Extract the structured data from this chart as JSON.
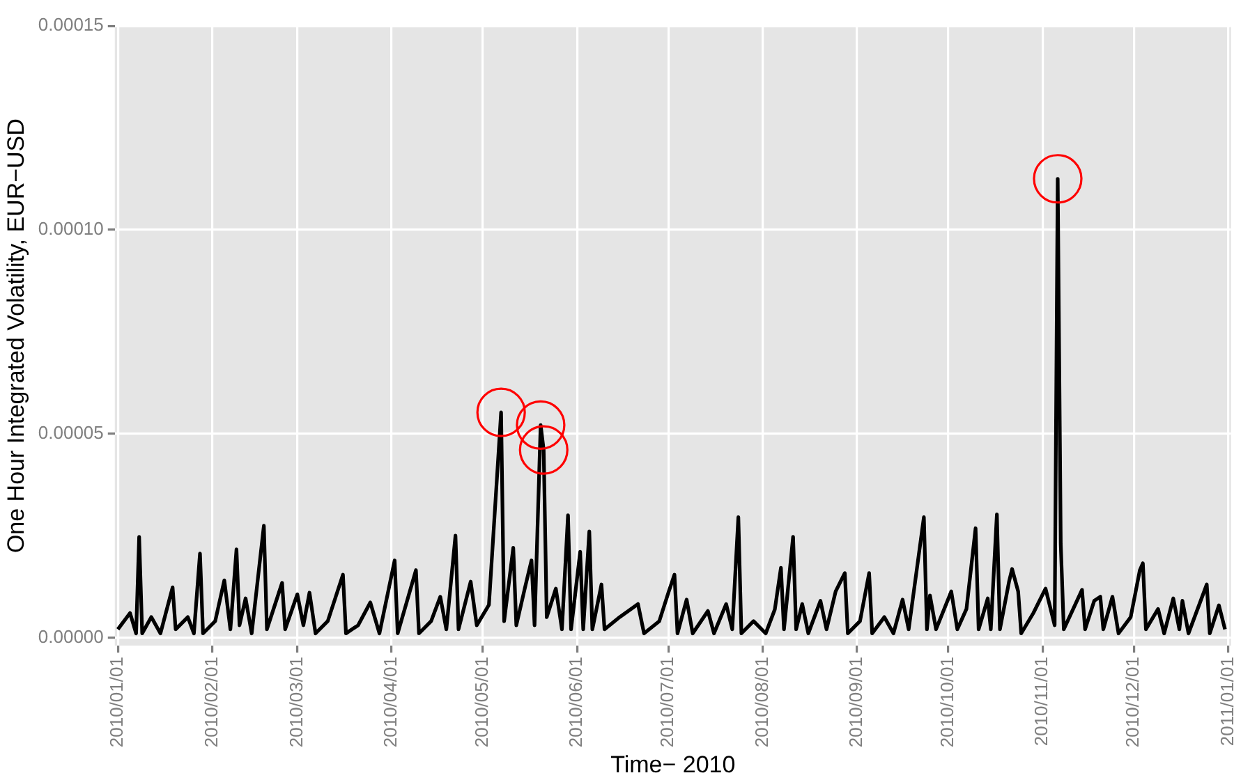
{
  "chart_data": {
    "type": "line",
    "xlabel": "Time− 2010",
    "ylabel": "One Hour Integrated Volatility, EUR−USD",
    "xlim": [
      "2009-12-31",
      "2011-01-02"
    ],
    "ylim": [
      -2e-06,
      0.00015
    ],
    "xticks": [
      {
        "value": "2010-01-01",
        "label": "2010/01/01"
      },
      {
        "value": "2010-02-01",
        "label": "2010/02/01"
      },
      {
        "value": "2010-03-01",
        "label": "2010/03/01"
      },
      {
        "value": "2010-04-01",
        "label": "2010/04/01"
      },
      {
        "value": "2010-05-01",
        "label": "2010/05/01"
      },
      {
        "value": "2010-06-01",
        "label": "2010/06/01"
      },
      {
        "value": "2010-07-01",
        "label": "2010/07/01"
      },
      {
        "value": "2010-08-01",
        "label": "2010/08/01"
      },
      {
        "value": "2010-09-01",
        "label": "2010/09/01"
      },
      {
        "value": "2010-10-01",
        "label": "2010/10/01"
      },
      {
        "value": "2010-11-01",
        "label": "2010/11/01"
      },
      {
        "value": "2010-12-01",
        "label": "2010/12/01"
      },
      {
        "value": "2011-01-01",
        "label": "2011/01/01"
      }
    ],
    "yticks": [
      {
        "value": 0,
        "label": "0.00000"
      },
      {
        "value": 5e-05,
        "label": "0.00005"
      },
      {
        "value": 0.0001,
        "label": "0.00010"
      },
      {
        "value": 0.00015,
        "label": "0.00015"
      }
    ],
    "grid": true,
    "series": [
      {
        "type": "line",
        "color": "#000000",
        "marker": "none",
        "line_style": "solid",
        "x": [
          "2010-01-01",
          "2010-01-05",
          "2010-01-07",
          "2010-01-08",
          "2010-01-09",
          "2010-01-12",
          "2010-01-15",
          "2010-01-19",
          "2010-01-20",
          "2010-01-24",
          "2010-01-26",
          "2010-01-28",
          "2010-01-29",
          "2010-02-02",
          "2010-02-05",
          "2010-02-07",
          "2010-02-09",
          "2010-02-10",
          "2010-02-12",
          "2010-02-14",
          "2010-02-18",
          "2010-02-19",
          "2010-02-24",
          "2010-02-25",
          "2010-03-01",
          "2010-03-03",
          "2010-03-05",
          "2010-03-07",
          "2010-03-11",
          "2010-03-16",
          "2010-03-17",
          "2010-03-21",
          "2010-03-25",
          "2010-03-28",
          "2010-04-02",
          "2010-04-03",
          "2010-04-09",
          "2010-04-10",
          "2010-04-14",
          "2010-04-17",
          "2010-04-19",
          "2010-04-22",
          "2010-04-23",
          "2010-04-27",
          "2010-04-29",
          "2010-05-03",
          "2010-05-07",
          "2010-05-08",
          "2010-05-11",
          "2010-05-12",
          "2010-05-15",
          "2010-05-17",
          "2010-05-18",
          "2010-05-20",
          "2010-05-21",
          "2010-05-22",
          "2010-05-25",
          "2010-05-27",
          "2010-05-29",
          "2010-05-30",
          "2010-06-02",
          "2010-06-03",
          "2010-06-05",
          "2010-06-06",
          "2010-06-09",
          "2010-06-10",
          "2010-06-15",
          "2010-06-21",
          "2010-06-23",
          "2010-06-28",
          "2010-07-01",
          "2010-07-03",
          "2010-07-04",
          "2010-07-07",
          "2010-07-09",
          "2010-07-14",
          "2010-07-16",
          "2010-07-20",
          "2010-07-22",
          "2010-07-24",
          "2010-07-25",
          "2010-07-29",
          "2010-08-02",
          "2010-08-05",
          "2010-08-07",
          "2010-08-08",
          "2010-08-11",
          "2010-08-12",
          "2010-08-14",
          "2010-08-16",
          "2010-08-20",
          "2010-08-22",
          "2010-08-25",
          "2010-08-28",
          "2010-08-29",
          "2010-09-02",
          "2010-09-05",
          "2010-09-06",
          "2010-09-10",
          "2010-09-13",
          "2010-09-16",
          "2010-09-18",
          "2010-09-23",
          "2010-09-24",
          "2010-09-25",
          "2010-09-27",
          "2010-10-02",
          "2010-10-04",
          "2010-10-07",
          "2010-10-10",
          "2010-10-11",
          "2010-10-14",
          "2010-10-15",
          "2010-10-17",
          "2010-10-18",
          "2010-10-21",
          "2010-10-22",
          "2010-10-24",
          "2010-10-25",
          "2010-10-29",
          "2010-11-02",
          "2010-11-05",
          "2010-11-06",
          "2010-11-07",
          "2010-11-08",
          "2010-11-14",
          "2010-11-15",
          "2010-11-18",
          "2010-11-20",
          "2010-11-21",
          "2010-11-24",
          "2010-11-26",
          "2010-11-30",
          "2010-12-03",
          "2010-12-04",
          "2010-12-05",
          "2010-12-09",
          "2010-12-11",
          "2010-12-14",
          "2010-12-16",
          "2010-12-17",
          "2010-12-19",
          "2010-12-25",
          "2010-12-26",
          "2010-12-29",
          "2010-12-31"
        ],
        "values": [
          2e-06,
          6e-06,
          1e-06,
          2.47e-05,
          1e-06,
          5e-06,
          1e-06,
          1.23e-05,
          2e-06,
          5e-06,
          1e-06,
          2.06e-05,
          1e-06,
          4e-06,
          1.4e-05,
          2e-06,
          2.16e-05,
          3e-06,
          9.6e-06,
          1e-06,
          2.74e-05,
          2e-06,
          1.34e-05,
          2e-06,
          1.06e-05,
          3e-06,
          1.1e-05,
          1e-06,
          4e-06,
          1.54e-05,
          1e-06,
          3e-06,
          8.6e-06,
          1e-06,
          1.89e-05,
          1e-06,
          1.65e-05,
          1e-06,
          4e-06,
          1e-05,
          2e-06,
          2.5e-05,
          2e-06,
          1.37e-05,
          3e-06,
          8e-06,
          5.52e-05,
          4e-06,
          2.2e-05,
          3e-06,
          1.27e-05,
          1.89e-05,
          3e-06,
          5.21e-05,
          4.6e-05,
          5e-06,
          1.2e-05,
          2e-06,
          3e-05,
          2e-06,
          2.1e-05,
          2e-06,
          2.6e-05,
          2e-06,
          1.3e-05,
          2e-06,
          5e-06,
          8.2e-06,
          1e-06,
          4e-06,
          1.1e-05,
          1.54e-05,
          1e-06,
          9.3e-06,
          1e-06,
          6.5e-06,
          1e-06,
          8.2e-06,
          2e-06,
          2.95e-05,
          1e-06,
          4e-06,
          1e-06,
          6.9e-06,
          1.71e-05,
          2e-06,
          2.47e-05,
          2e-06,
          8.2e-06,
          1e-06,
          9e-06,
          2e-06,
          1.13e-05,
          1.58e-05,
          1e-06,
          4e-06,
          1.58e-05,
          1e-06,
          5e-06,
          1e-06,
          9.3e-06,
          2e-06,
          2.95e-05,
          2e-06,
          1.03e-05,
          2e-06,
          1.13e-05,
          2e-06,
          7e-06,
          2.68e-05,
          2e-06,
          9.6e-06,
          2e-06,
          3.02e-05,
          2e-06,
          1.37e-05,
          1.68e-05,
          1.13e-05,
          1e-06,
          6e-06,
          1.2e-05,
          3e-06,
          0.0001125,
          2.3e-05,
          2e-06,
          1.17e-05,
          2e-06,
          9e-06,
          1e-05,
          2e-06,
          1e-05,
          1e-06,
          5e-06,
          1.65e-05,
          1.82e-05,
          2e-06,
          7e-06,
          1e-06,
          9.6e-06,
          2e-06,
          9e-06,
          1e-06,
          1.3e-05,
          1e-06,
          7.9e-06,
          2e-06
        ]
      },
      {
        "type": "scatter",
        "color": "#ff0000",
        "marker": "circle",
        "x": [
          "2010-05-07",
          "2010-05-20",
          "2010-05-21",
          "2010-11-06"
        ],
        "values": [
          5.52e-05,
          5.21e-05,
          4.6e-05,
          0.0001125
        ]
      }
    ]
  }
}
